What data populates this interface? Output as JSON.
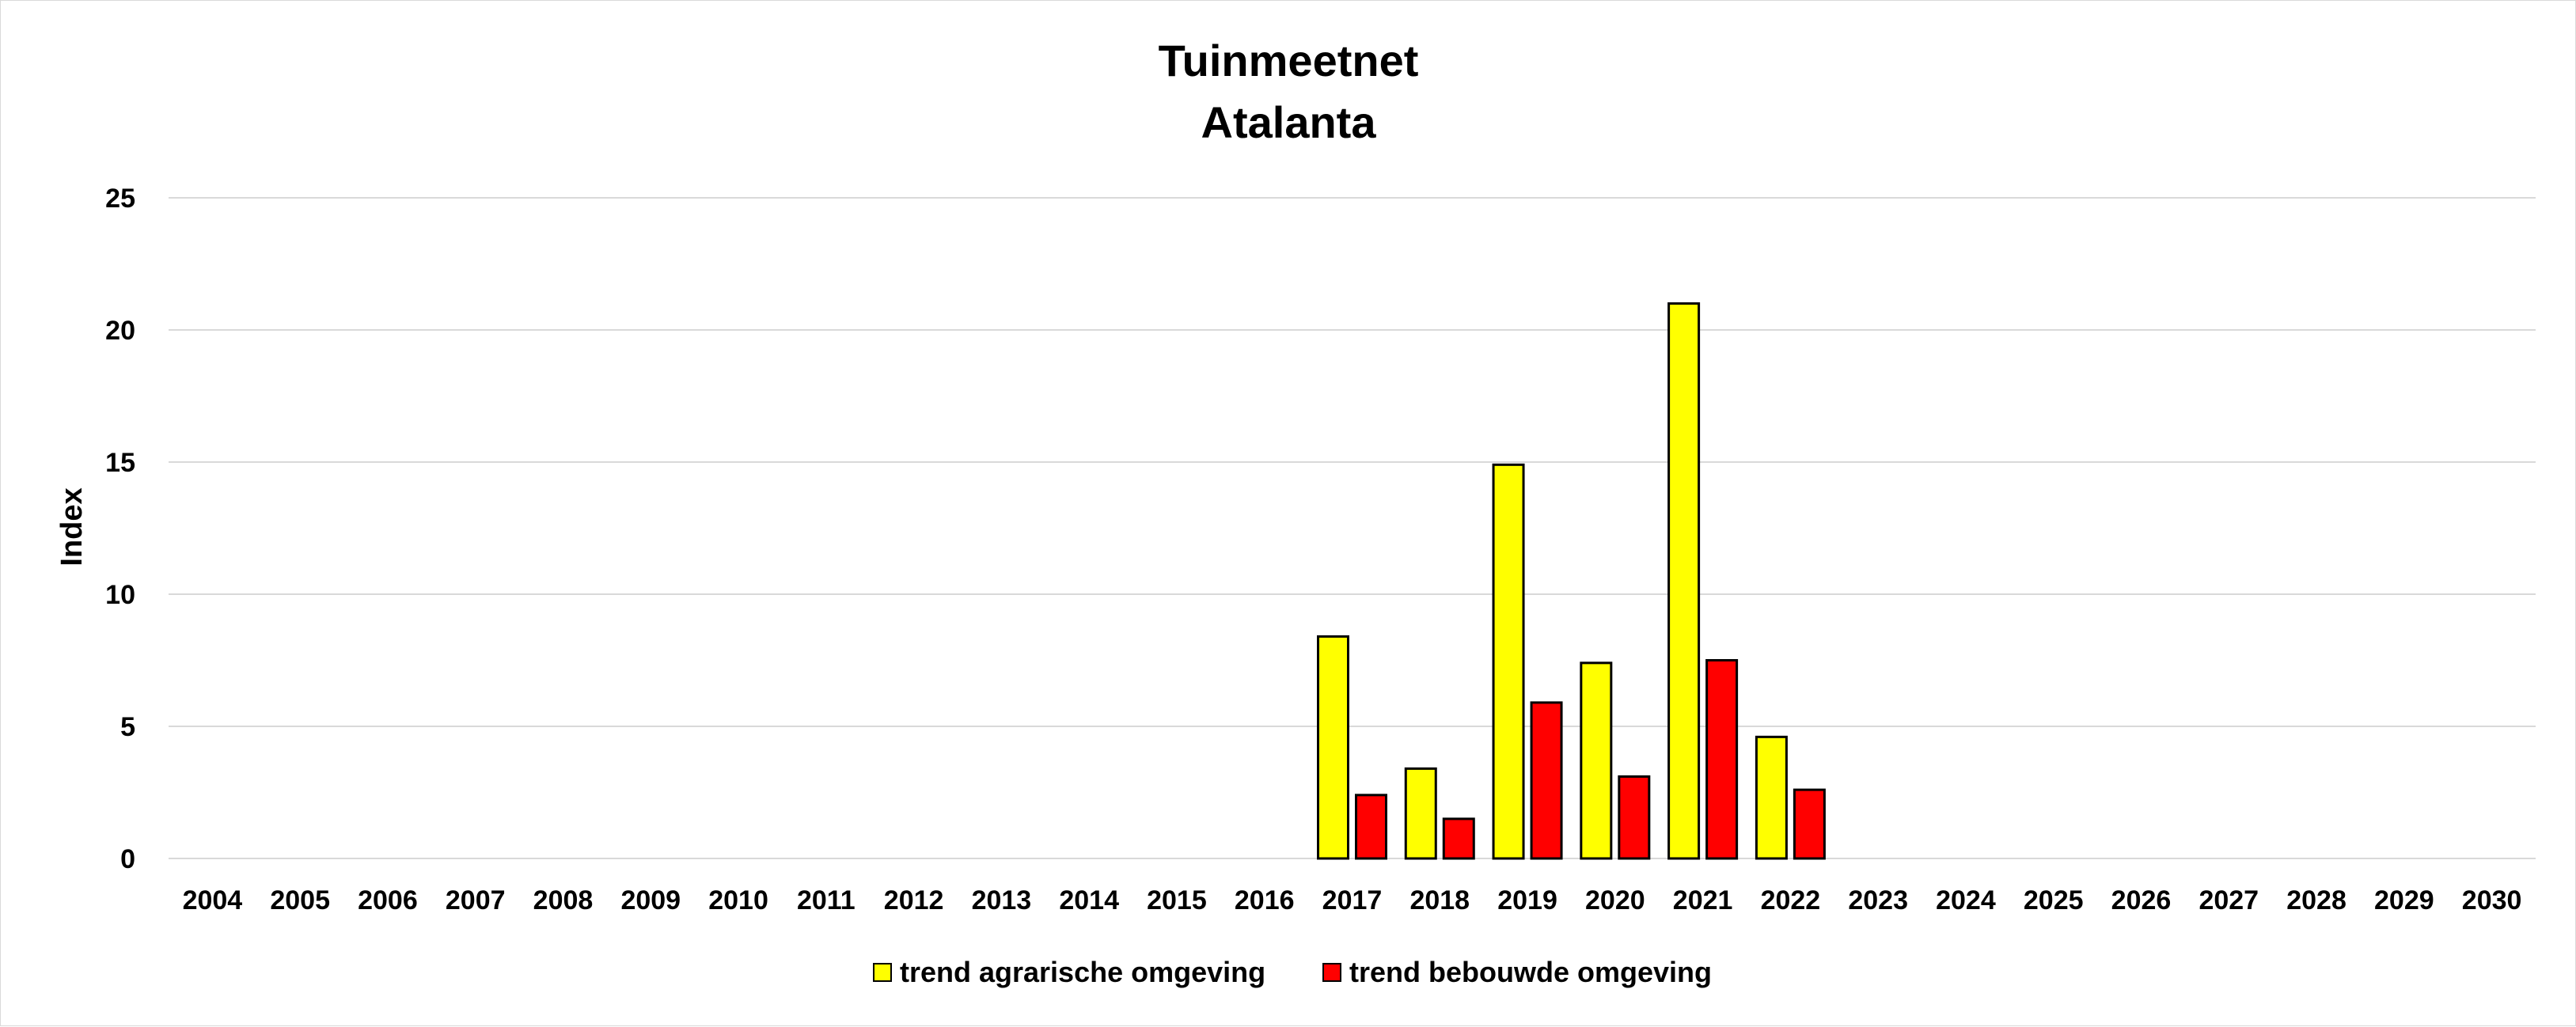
{
  "chart_data": {
    "type": "bar",
    "title": "Tuinmeetnet",
    "subtitle": "Atalanta",
    "xlabel": "",
    "ylabel": "Index",
    "ylim": [
      0,
      25
    ],
    "yticks": [
      0,
      5,
      10,
      15,
      20,
      25
    ],
    "grid": true,
    "legend_position": "bottom",
    "categories": [
      "2004",
      "2005",
      "2006",
      "2007",
      "2008",
      "2009",
      "2010",
      "2011",
      "2012",
      "2013",
      "2014",
      "2015",
      "2016",
      "2017",
      "2018",
      "2019",
      "2020",
      "2021",
      "2022",
      "2023",
      "2024",
      "2025",
      "2026",
      "2027",
      "2028",
      "2029",
      "2030"
    ],
    "series": [
      {
        "name": "trend agrarische omgeving",
        "color": "#ffff00",
        "values": [
          null,
          null,
          null,
          null,
          null,
          null,
          null,
          null,
          null,
          null,
          null,
          null,
          null,
          8.4,
          3.4,
          14.9,
          7.4,
          21.0,
          4.6,
          null,
          null,
          null,
          null,
          null,
          null,
          null,
          null
        ]
      },
      {
        "name": "trend bebouwde omgeving",
        "color": "#ff0000",
        "values": [
          null,
          null,
          null,
          null,
          null,
          null,
          null,
          null,
          null,
          null,
          null,
          null,
          null,
          2.4,
          1.5,
          5.9,
          3.1,
          7.5,
          2.6,
          null,
          null,
          null,
          null,
          null,
          null,
          null,
          null
        ]
      }
    ]
  }
}
